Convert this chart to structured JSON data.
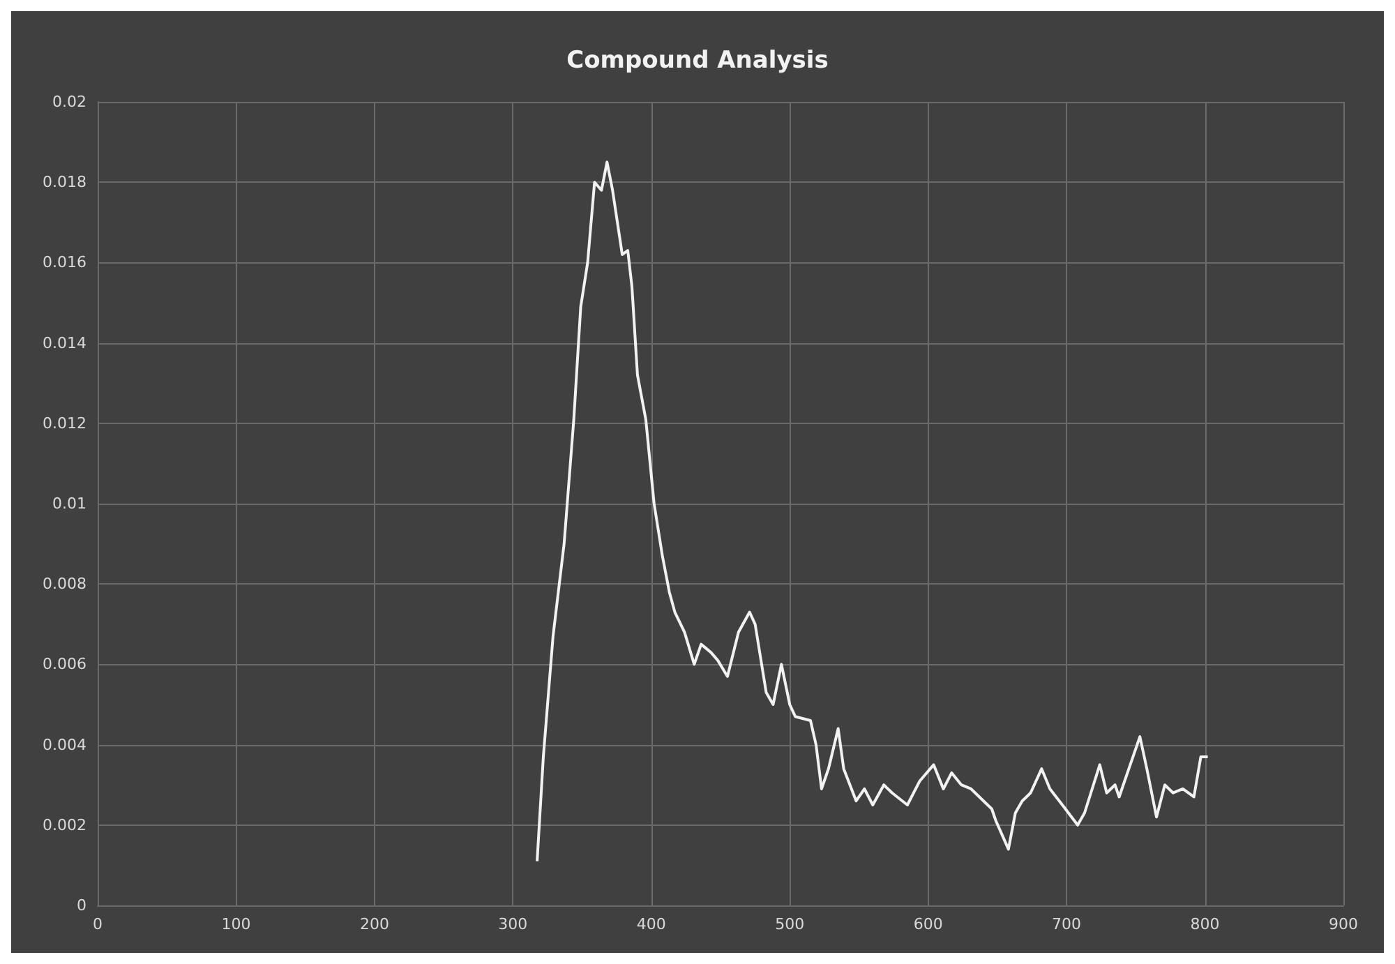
{
  "chart_data": {
    "type": "line",
    "title": "Compound Analysis",
    "x": [
      317.5,
      322,
      329,
      337,
      344,
      349,
      354,
      359,
      364,
      368,
      372,
      379,
      383,
      386,
      390,
      396,
      402,
      408,
      413,
      417,
      424,
      431,
      436,
      443,
      448,
      455,
      463,
      471,
      475,
      483,
      488,
      494,
      500,
      504,
      515,
      519,
      523,
      528,
      535,
      539,
      548,
      554,
      560,
      568,
      574,
      585,
      594,
      604,
      611,
      617,
      624,
      631,
      646,
      649,
      658,
      663,
      668,
      674,
      682,
      688,
      697,
      708,
      713,
      724,
      729,
      735,
      738,
      745,
      753,
      758,
      765,
      771,
      777,
      784,
      792,
      797,
      802
    ],
    "series": [
      {
        "color": "#f2f2f2",
        "values": [
          0.0011,
          0.0037,
          0.0067,
          0.009,
          0.0121,
          0.0149,
          0.016,
          0.018,
          0.0178,
          0.0185,
          0.0178,
          0.0162,
          0.0163,
          0.0154,
          0.0132,
          0.0121,
          0.01,
          0.0087,
          0.0078,
          0.0073,
          0.0068,
          0.006,
          0.0065,
          0.0063,
          0.0061,
          0.0057,
          0.0068,
          0.0073,
          0.007,
          0.0053,
          0.005,
          0.006,
          0.005,
          0.0047,
          0.0046,
          0.004,
          0.0029,
          0.0034,
          0.0044,
          0.0034,
          0.0026,
          0.0029,
          0.0025,
          0.003,
          0.0028,
          0.0025,
          0.0031,
          0.0035,
          0.0029,
          0.0033,
          0.003,
          0.0029,
          0.0024,
          0.0021,
          0.0014,
          0.0023,
          0.0026,
          0.0028,
          0.0034,
          0.0029,
          0.0025,
          0.002,
          0.0023,
          0.0035,
          0.0028,
          0.003,
          0.0027,
          0.0034,
          0.0042,
          0.0034,
          0.0022,
          0.003,
          0.0028,
          0.0029,
          0.0027,
          0.0037,
          0.0037
        ]
      }
    ],
    "xlim": [
      0,
      900
    ],
    "xticks": [
      0,
      100,
      200,
      300,
      400,
      500,
      600,
      700,
      800,
      900
    ],
    "ylim": [
      0,
      0.02
    ],
    "yticks": [
      0,
      0.002,
      0.004,
      0.006,
      0.008,
      0.01,
      0.012,
      0.014,
      0.016,
      0.018,
      0.02
    ],
    "grid": true,
    "marker": "none",
    "line_style": "solid"
  }
}
